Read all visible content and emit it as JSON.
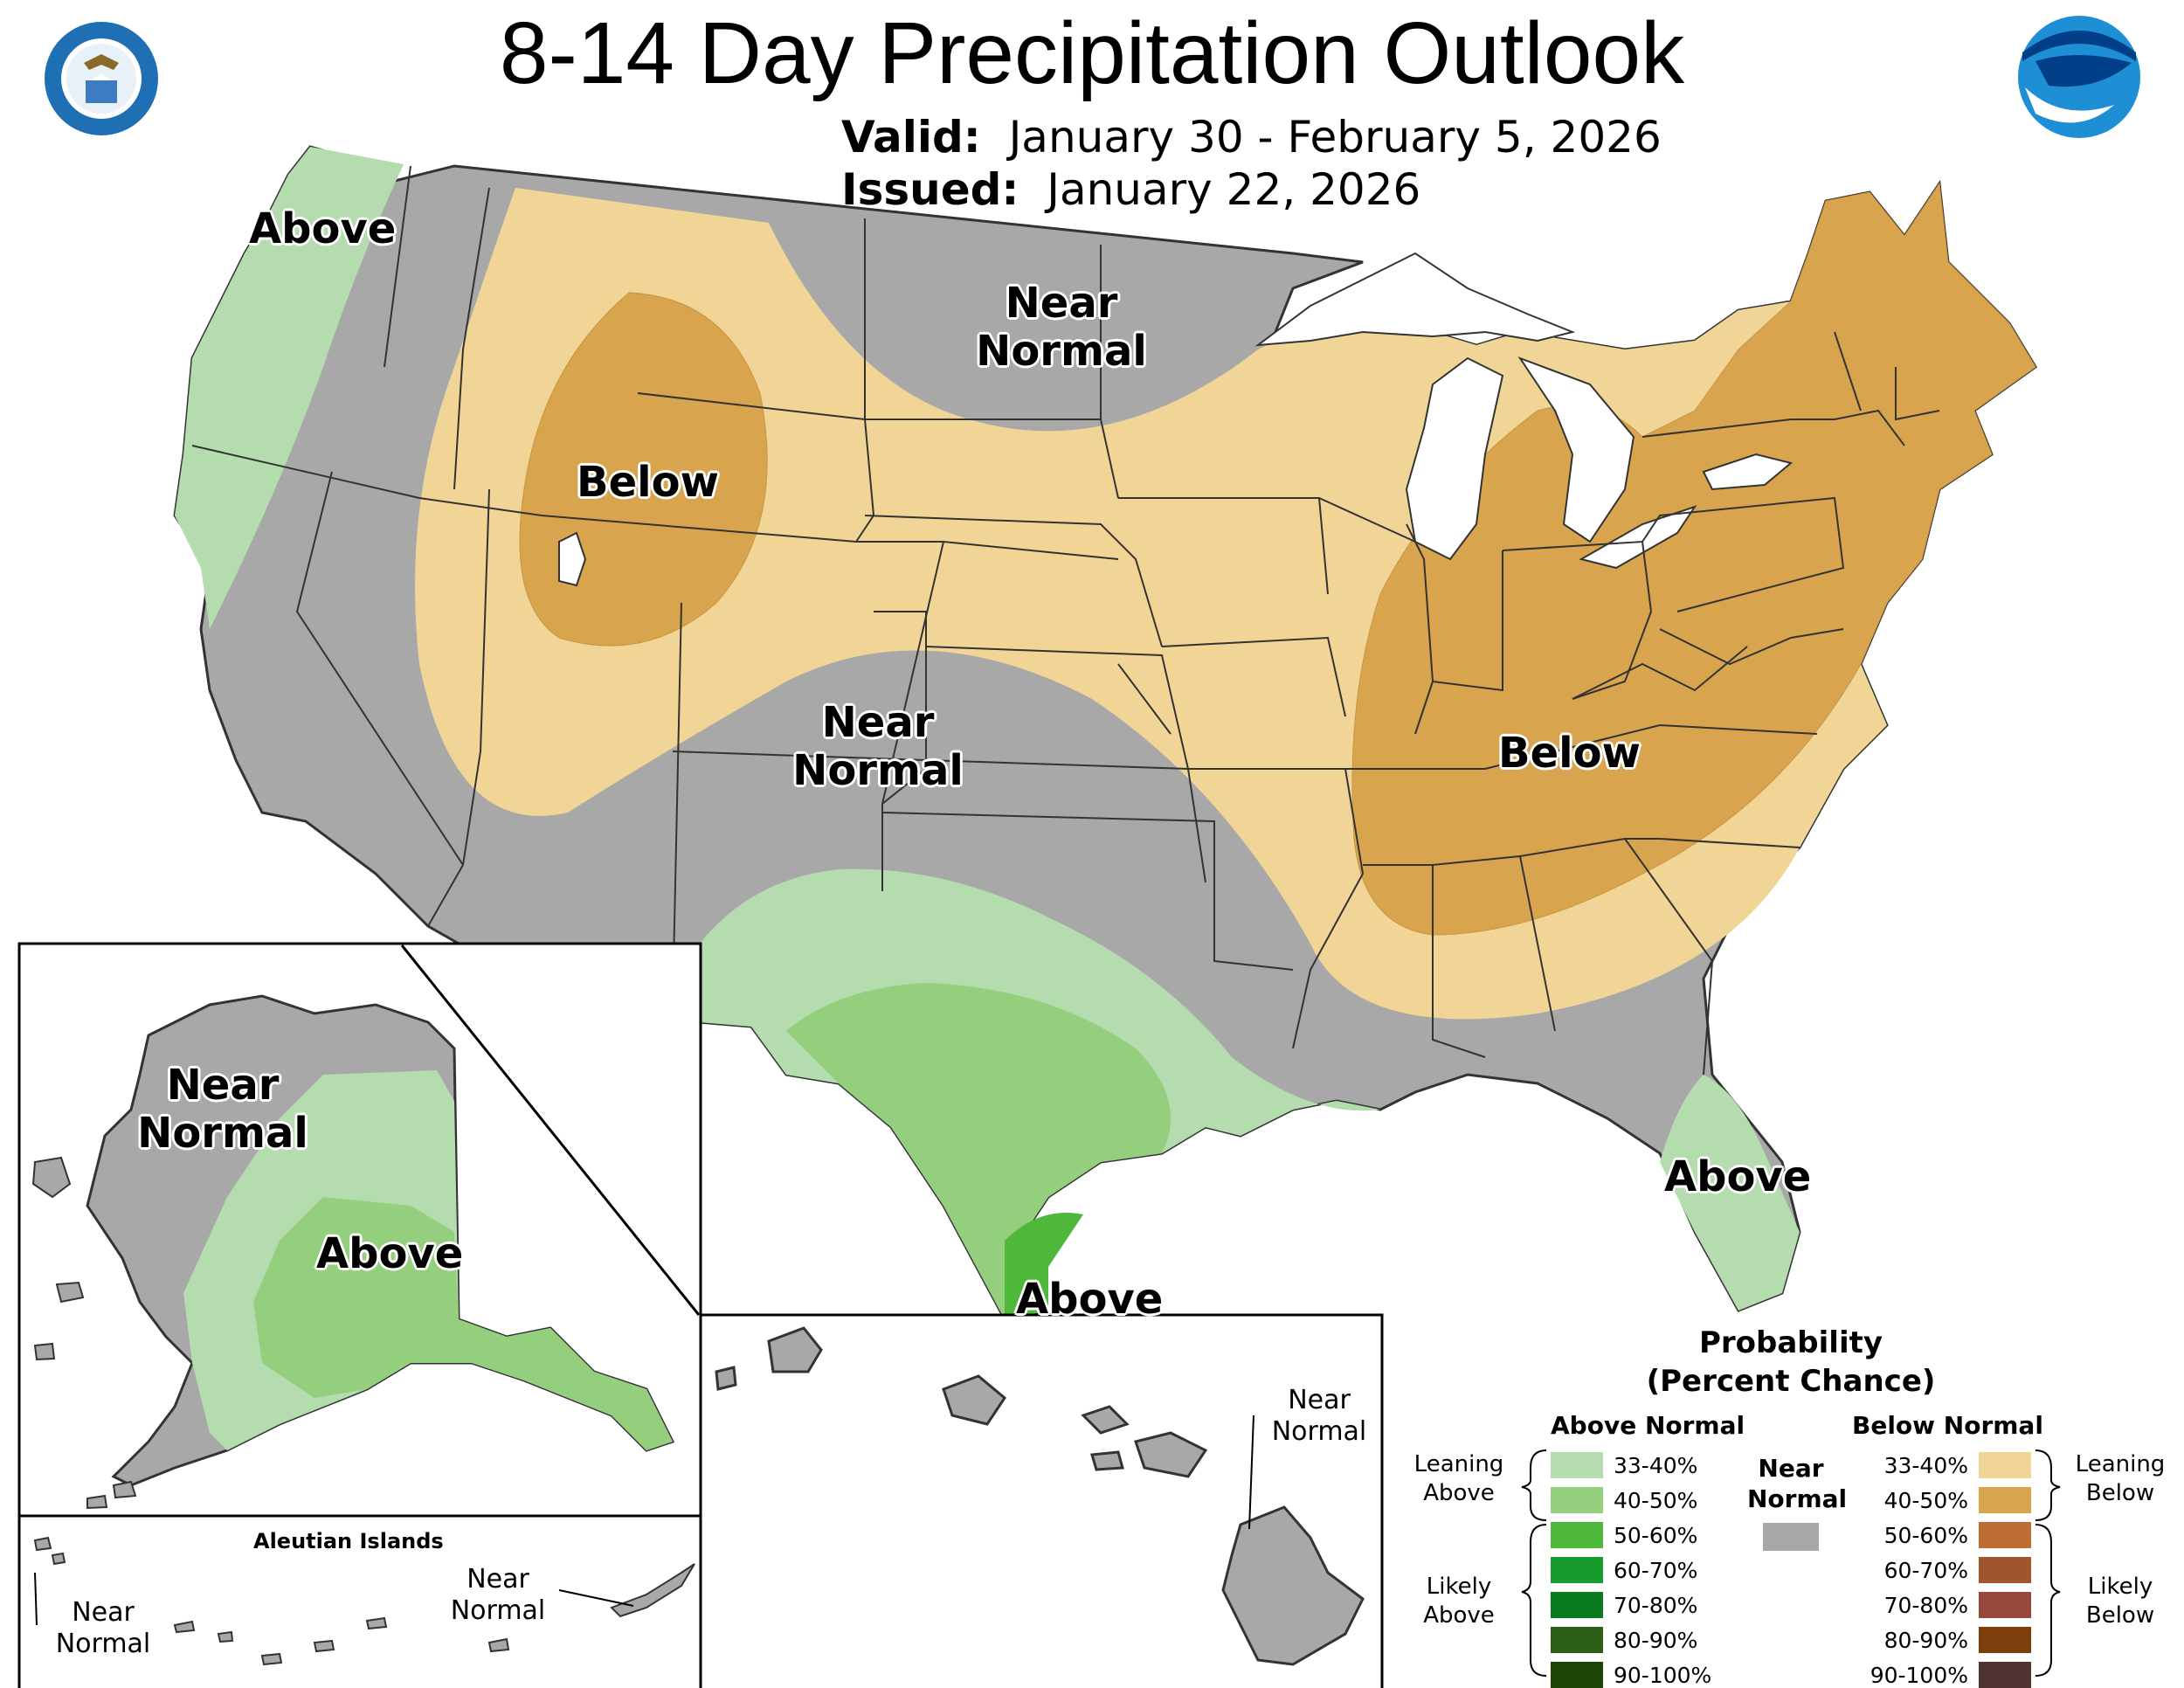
{
  "title": "8-14 Day Precipitation Outlook",
  "valid": {
    "label": "Valid:",
    "value": "January 30 - February 5, 2026"
  },
  "issued": {
    "label": "Issued:",
    "value": "January 22, 2026"
  },
  "logos": {
    "left": "department-of-commerce-seal",
    "right": "noaa-logo"
  },
  "regions": {
    "pacific_nw": "Above",
    "northern_plains": "Near Normal",
    "rockies": "Below",
    "southwest": "Near Normal",
    "east": "Below",
    "texas_coast": "Above",
    "florida": "Above",
    "alaska_west": "Near Normal",
    "alaska_east": "Above",
    "aleutian_west": "Near Normal",
    "aleutian_east": "Near Normal",
    "hawaii": "Near Normal"
  },
  "inset_labels": {
    "aleutian": "Aleutian Islands"
  },
  "colors": {
    "near_normal": "#a8a8a8",
    "above_33_40": "#b4dcae",
    "above_40_50": "#94cf7e",
    "above_50_60": "#4db83a",
    "above_60_70": "#179b2e",
    "above_70_80": "#0a7a1e",
    "above_80_90": "#2d5f16",
    "above_90_100": "#1e4508",
    "below_33_40": "#f0d596",
    "below_40_50": "#d8a44e",
    "below_50_60": "#bd6d31",
    "below_60_70": "#a0552e",
    "below_70_80": "#98473c",
    "below_80_90": "#7c3e0a",
    "below_90_100": "#4e3234"
  },
  "legend": {
    "title_line1": "Probability",
    "title_line2": "(Percent Chance)",
    "above_head": "Above Normal",
    "below_head": "Below Normal",
    "near_head_1": "Near",
    "near_head_2": "Normal",
    "leaning_above_1": "Leaning",
    "leaning_above_2": "Above",
    "likely_above_1": "Likely",
    "likely_above_2": "Above",
    "leaning_below_1": "Leaning",
    "leaning_below_2": "Below",
    "likely_below_1": "Likely",
    "likely_below_2": "Below",
    "ranges": [
      "33-40%",
      "40-50%",
      "50-60%",
      "60-70%",
      "70-80%",
      "80-90%",
      "90-100%"
    ]
  }
}
